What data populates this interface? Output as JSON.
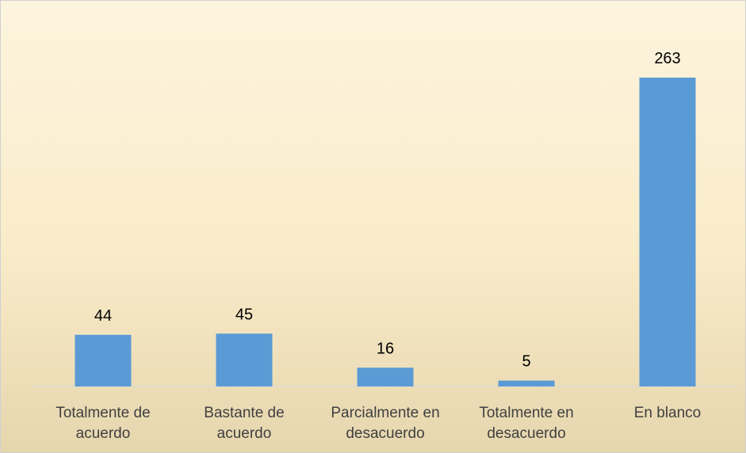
{
  "chart_data": {
    "type": "bar",
    "categories": [
      "Totalmente de acuerdo",
      "Bastante de acuerdo",
      "Parcialmente en desacuerdo",
      "Totalmente en desacuerdo",
      "En blanco"
    ],
    "values": [
      44,
      45,
      16,
      5,
      263
    ],
    "color": "#5b9bd5"
  }
}
